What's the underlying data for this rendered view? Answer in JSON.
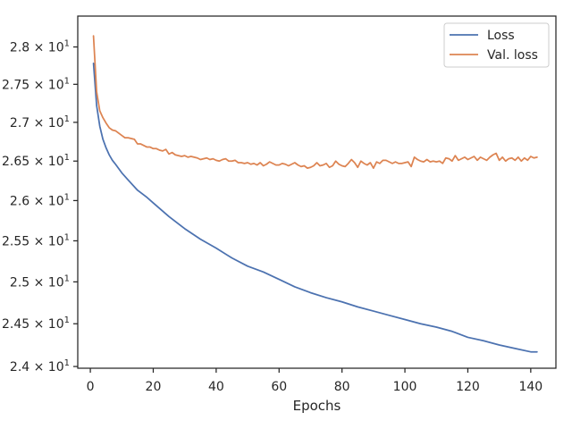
{
  "chart_data": {
    "type": "line",
    "title": "",
    "xlabel": "Epochs",
    "ylabel": "",
    "xlim": [
      -4.0,
      148.0
    ],
    "ylim": [
      23.98,
      28.42
    ],
    "y_scale": "log",
    "grid": false,
    "legend_position": "top-right",
    "x_ticks": [
      0,
      20,
      40,
      60,
      80,
      100,
      120,
      140
    ],
    "x_tick_labels": [
      "0",
      "20",
      "40",
      "60",
      "80",
      "100",
      "120",
      "140"
    ],
    "y_ticks": [
      24.0,
      24.5,
      25.0,
      25.5,
      26.0,
      26.5,
      27.0,
      27.5,
      28.0
    ],
    "y_tick_labels": [
      {
        "mantissa": "2.4",
        "exp": "1"
      },
      {
        "mantissa": "2.45",
        "exp": "1"
      },
      {
        "mantissa": "2.5",
        "exp": "1"
      },
      {
        "mantissa": "2.55",
        "exp": "1"
      },
      {
        "mantissa": "2.6",
        "exp": "1"
      },
      {
        "mantissa": "2.65",
        "exp": "1"
      },
      {
        "mantissa": "2.7",
        "exp": "1"
      },
      {
        "mantissa": "2.75",
        "exp": "1"
      },
      {
        "mantissa": "2.8",
        "exp": "1"
      }
    ],
    "series": [
      {
        "name": "Loss",
        "color": "#4c72b0",
        "x": [
          1,
          2,
          3,
          4,
          5,
          6,
          7,
          8,
          10,
          12,
          15,
          18,
          20,
          25,
          30,
          35,
          40,
          45,
          50,
          55,
          60,
          65,
          70,
          75,
          80,
          85,
          90,
          95,
          100,
          105,
          110,
          115,
          120,
          125,
          130,
          135,
          140,
          142
        ],
        "y": [
          27.78,
          27.22,
          26.95,
          26.78,
          26.67,
          26.58,
          26.51,
          26.46,
          26.35,
          26.26,
          26.13,
          26.04,
          25.97,
          25.8,
          25.65,
          25.52,
          25.41,
          25.29,
          25.19,
          25.12,
          25.03,
          24.94,
          24.87,
          24.81,
          24.76,
          24.7,
          24.65,
          24.6,
          24.55,
          24.5,
          24.46,
          24.41,
          24.34,
          24.3,
          24.25,
          24.21,
          24.17,
          24.17
        ]
      },
      {
        "name": "Val. loss",
        "color": "#dd8452",
        "x": [
          1,
          2,
          3,
          4,
          5,
          6,
          7,
          8,
          9,
          10,
          11,
          12,
          13,
          14,
          15,
          16,
          17,
          18,
          19,
          20,
          21,
          22,
          23,
          24,
          25,
          26,
          27,
          28,
          29,
          30,
          31,
          32,
          33,
          34,
          35,
          36,
          37,
          38,
          39,
          40,
          41,
          42,
          43,
          44,
          45,
          46,
          47,
          48,
          49,
          50,
          51,
          52,
          53,
          54,
          55,
          56,
          57,
          58,
          59,
          60,
          61,
          62,
          63,
          64,
          65,
          66,
          67,
          68,
          69,
          70,
          71,
          72,
          73,
          74,
          75,
          76,
          77,
          78,
          79,
          80,
          81,
          82,
          83,
          84,
          85,
          86,
          87,
          88,
          89,
          90,
          91,
          92,
          93,
          94,
          95,
          96,
          97,
          98,
          99,
          100,
          101,
          102,
          103,
          104,
          105,
          106,
          107,
          108,
          109,
          110,
          111,
          112,
          113,
          114,
          115,
          116,
          117,
          118,
          119,
          120,
          121,
          122,
          123,
          124,
          125,
          126,
          127,
          128,
          129,
          130,
          131,
          132,
          133,
          134,
          135,
          136,
          137,
          138,
          139,
          140,
          141,
          142
        ],
        "y": [
          28.15,
          27.4,
          27.15,
          27.06,
          26.99,
          26.93,
          26.9,
          26.89,
          26.86,
          26.83,
          26.8,
          26.8,
          26.79,
          26.78,
          26.72,
          26.72,
          26.7,
          26.68,
          26.68,
          26.66,
          26.66,
          26.64,
          26.63,
          26.65,
          26.59,
          26.61,
          26.58,
          26.57,
          26.56,
          26.57,
          26.55,
          26.56,
          26.55,
          26.54,
          26.52,
          26.53,
          26.54,
          26.52,
          26.53,
          26.51,
          26.5,
          26.52,
          26.53,
          26.5,
          26.5,
          26.51,
          26.48,
          26.48,
          26.47,
          26.48,
          26.46,
          26.47,
          26.45,
          26.48,
          26.44,
          26.46,
          26.49,
          26.47,
          26.45,
          26.45,
          26.47,
          26.46,
          26.44,
          26.46,
          26.48,
          26.45,
          26.43,
          26.44,
          26.41,
          26.42,
          26.44,
          26.48,
          26.44,
          26.45,
          26.47,
          26.42,
          26.44,
          26.5,
          26.46,
          26.44,
          26.43,
          26.47,
          26.52,
          26.48,
          26.42,
          26.5,
          26.47,
          26.45,
          26.48,
          26.41,
          26.49,
          26.47,
          26.51,
          26.51,
          26.49,
          26.47,
          26.49,
          26.47,
          26.47,
          26.48,
          26.49,
          26.43,
          26.55,
          26.52,
          26.5,
          26.49,
          26.52,
          26.49,
          26.5,
          26.49,
          26.5,
          26.47,
          26.54,
          26.53,
          26.5,
          26.57,
          26.51,
          26.53,
          26.55,
          26.52,
          26.54,
          26.56,
          26.51,
          26.55,
          26.53,
          26.51,
          26.55,
          26.58,
          26.6,
          26.51,
          26.55,
          26.5,
          26.53,
          26.54,
          26.51,
          26.55,
          26.5,
          26.54,
          26.51,
          26.56,
          26.54,
          26.55
        ]
      }
    ]
  }
}
